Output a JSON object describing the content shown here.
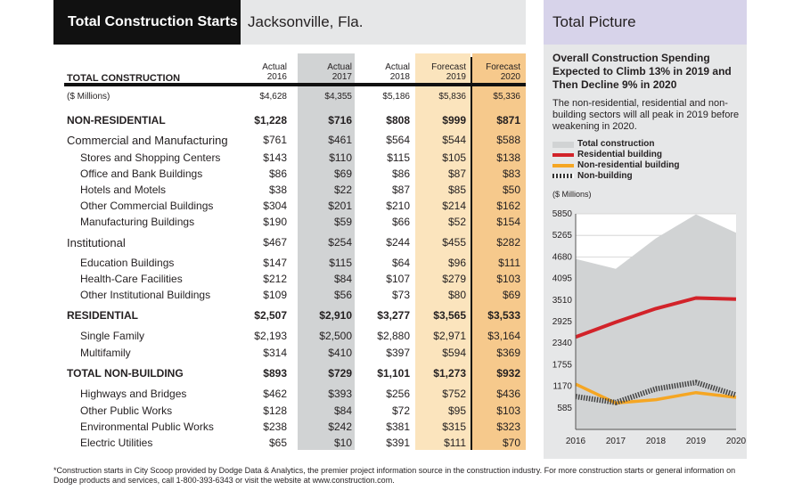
{
  "table": {
    "title": "Total Construction Starts",
    "city": "Jacksonville, Fla.",
    "total_header": "TOTAL CONSTRUCTION",
    "columns": [
      {
        "line1": "Actual",
        "line2": "2016"
      },
      {
        "line1": "Actual",
        "line2": "2017"
      },
      {
        "line1": "Actual",
        "line2": "2018"
      },
      {
        "line1": "Forecast",
        "line2": "2019"
      },
      {
        "line1": "Forecast",
        "line2": "2020"
      }
    ],
    "rows": [
      {
        "label": "($ Millions)",
        "style": "small",
        "values": [
          "$4,628",
          "$4,355",
          "$5,186",
          "$5,836",
          "$5,336"
        ]
      },
      {
        "label": "NON-RESIDENTIAL",
        "style": "bold",
        "values": [
          "$1,228",
          "$716",
          "$808",
          "$999",
          "$871"
        ]
      },
      {
        "label": "Commercial and Manufacturing",
        "style": "group",
        "values": [
          "$761",
          "$461",
          "$564",
          "$544",
          "$588"
        ]
      },
      {
        "label": "Stores and Shopping Centers",
        "style": "sub",
        "values": [
          "$143",
          "$110",
          "$115",
          "$105",
          "$138"
        ]
      },
      {
        "label": "Office and Bank Buildings",
        "style": "sub",
        "values": [
          "$86",
          "$69",
          "$86",
          "$87",
          "$83"
        ]
      },
      {
        "label": "Hotels and Motels",
        "style": "sub",
        "values": [
          "$38",
          "$22",
          "$87",
          "$85",
          "$50"
        ]
      },
      {
        "label": "Other Commercial Buildings",
        "style": "sub",
        "values": [
          "$304",
          "$201",
          "$210",
          "$214",
          "$162"
        ]
      },
      {
        "label": "Manufacturing Buildings",
        "style": "sub",
        "values": [
          "$190",
          "$59",
          "$66",
          "$52",
          "$154"
        ]
      },
      {
        "label": "Institutional",
        "style": "group",
        "values": [
          "$467",
          "$254",
          "$244",
          "$455",
          "$282"
        ]
      },
      {
        "label": "Education Buildings",
        "style": "sub",
        "values": [
          "$147",
          "$115",
          "$64",
          "$96",
          "$111"
        ]
      },
      {
        "label": "Health-Care Facilities",
        "style": "sub",
        "values": [
          "$212",
          "$84",
          "$107",
          "$279",
          "$103"
        ]
      },
      {
        "label": "Other Institutional Buildings",
        "style": "sub",
        "values": [
          "$109",
          "$56",
          "$73",
          "$80",
          "$69"
        ]
      },
      {
        "label": "RESIDENTIAL",
        "style": "bold",
        "values": [
          "$2,507",
          "$2,910",
          "$3,277",
          "$3,565",
          "$3,533"
        ]
      },
      {
        "label": "Single Family",
        "style": "sub",
        "values": [
          "$2,193",
          "$2,500",
          "$2,880",
          "$2,971",
          "$3,164"
        ]
      },
      {
        "label": "Multifamily",
        "style": "sub",
        "values": [
          "$314",
          "$410",
          "$397",
          "$594",
          "$369"
        ]
      },
      {
        "label": "TOTAL NON-BUILDING",
        "style": "bold",
        "values": [
          "$893",
          "$729",
          "$1,101",
          "$1,273",
          "$932"
        ]
      },
      {
        "label": "Highways and Bridges",
        "style": "sub",
        "values": [
          "$462",
          "$393",
          "$256",
          "$752",
          "$436"
        ]
      },
      {
        "label": "Other Public Works",
        "style": "sub",
        "values": [
          "$128",
          "$84",
          "$72",
          "$95",
          "$103"
        ]
      },
      {
        "label": "Environmental Public Works",
        "style": "sub",
        "values": [
          "$238",
          "$242",
          "$381",
          "$315",
          "$323"
        ]
      },
      {
        "label": "Electric Utilities",
        "style": "sub",
        "values": [
          "$65",
          "$10",
          "$391",
          "$111",
          "$70"
        ]
      }
    ]
  },
  "panel": {
    "header": "Total Picture",
    "title": "Overall Construction Spending Expected to Climb 13% in 2019 and Then Decline 9% in 2020",
    "description": "The non-residential, residential and non-building sectors will all peak in 2019 before weakening in 2020."
  },
  "chart_data": {
    "type": "line",
    "ylabel": "($ Millions)",
    "x": [
      "2016",
      "2017",
      "2018",
      "2019",
      "2020"
    ],
    "ylim": [
      0,
      5850
    ],
    "y_ticks": [
      585,
      1170,
      1755,
      2340,
      2925,
      3510,
      4095,
      4680,
      5265,
      5850
    ],
    "grid": true,
    "legend_position": "top-left",
    "series": [
      {
        "name": "Total construction",
        "style": "area",
        "color": "#d1d3d4",
        "values": [
          4628,
          4355,
          5186,
          5836,
          5336
        ]
      },
      {
        "name": "Residential building",
        "style": "line",
        "color": "#d2232a",
        "values": [
          2507,
          2910,
          3277,
          3565,
          3533
        ]
      },
      {
        "name": "Non-residential building",
        "style": "line",
        "color": "#f5a623",
        "values": [
          1228,
          716,
          808,
          999,
          871
        ]
      },
      {
        "name": "Non-building",
        "style": "hatched",
        "color": "#555555",
        "values": [
          893,
          729,
          1101,
          1273,
          932
        ]
      }
    ]
  },
  "footer": "*Construction starts in City Scoop provided by Dodge Data & Analytics, the premier project information source in the construction industry. For more construction starts or general information on Dodge products and services, call 1-800-393-6343 or visit the website at www.construction.com."
}
